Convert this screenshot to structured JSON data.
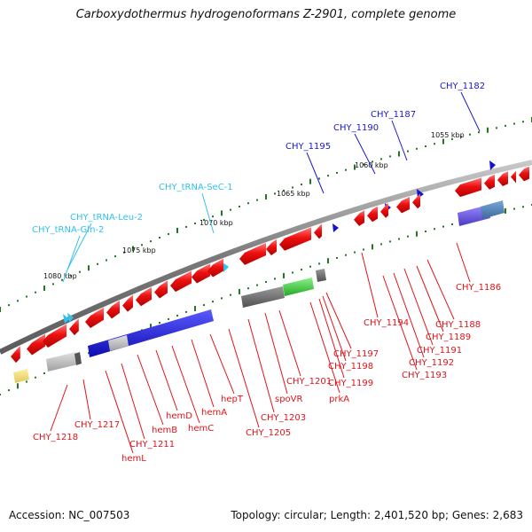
{
  "map": {
    "title": "Carboxydothermus hydrogenoformans Z-2901, complete genome",
    "accession_label": "Accession: NC_007503",
    "topology_label": "Topology: circular; Length: 2,401,520 bp; Genes: 2,683"
  },
  "scale_ticks": [
    "1055 kbp",
    "1060 kbp",
    "1065 kbp",
    "1070 kbp",
    "1075 kbp",
    "1080 kbp"
  ],
  "labels_blue": [
    "CHY_1182",
    "CHY_1187",
    "CHY_1190",
    "CHY_1195"
  ],
  "labels_cyan": [
    "CHY_tRNA-SeC-1",
    "CHY_tRNA-Leu-2",
    "CHY_tRNA-Gln-2"
  ],
  "labels_red": [
    "CHY_1186",
    "CHY_1188",
    "CHY_1189",
    "CHY_1191",
    "CHY_1192",
    "CHY_1193",
    "CHY_1194",
    "CHY_1197",
    "CHY_1198",
    "CHY_1199",
    "prkA",
    "CHY_1201",
    "spoVR",
    "CHY_1203",
    "CHY_1205",
    "hepT",
    "hemA",
    "hemC",
    "hemD",
    "hemB",
    "hemL",
    "CHY_1211",
    "CHY_1217",
    "CHY_1218"
  ],
  "colors": {
    "backbone": "#808080",
    "forward_gene": "#e8141a",
    "forward_label": "#1a1acc",
    "trna": "#33c0ee",
    "reverse_label": "#e0141a",
    "blue_block": "#1a1ad0",
    "green_block": "#33cc33",
    "grey_block": "#666666",
    "scale_dots": "#1f7a1f"
  }
}
